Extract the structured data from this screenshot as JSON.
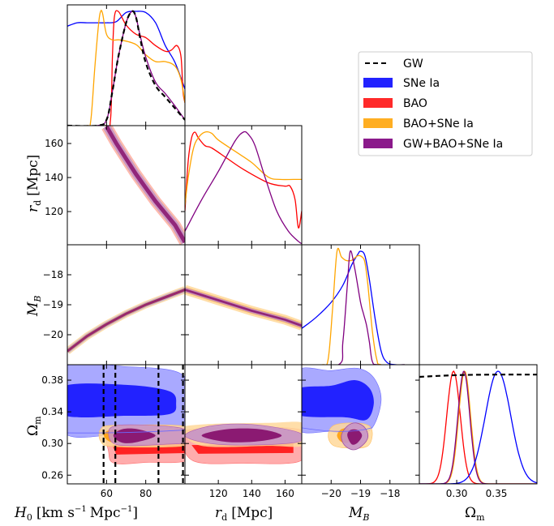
{
  "chart_data": {
    "type": "corner",
    "title": "",
    "parameters": [
      {
        "key": "H0",
        "label_tex": "H0 [km s^-1 Mpc^-1]",
        "label_main": "H",
        "label_sub": "0",
        "label_unit": "[km s",
        "label_unit2": "Mpc",
        "label_end": "]",
        "range": [
          40,
          100
        ],
        "ticks": [
          60,
          80
        ],
        "tick_labels": [
          "60",
          "80"
        ]
      },
      {
        "key": "rd",
        "label_tex": "r_d [Mpc]",
        "label_main": "r",
        "label_sub": "d",
        "label_unit": "[Mpc]",
        "range": [
          100,
          170
        ],
        "ticks": [
          120,
          140,
          160
        ],
        "tick_labels": [
          "120",
          "140",
          "160"
        ]
      },
      {
        "key": "MB",
        "label_tex": "M_B",
        "label_main": "M",
        "label_sub": "B",
        "range": [
          -21,
          -17
        ],
        "ticks": [
          -20,
          -19,
          -18
        ],
        "tick_labels": [
          "−20",
          "−19",
          "−18"
        ]
      },
      {
        "key": "Om",
        "label_tex": "Omega_m",
        "label_main": "Ω",
        "label_sub": "m",
        "range": [
          0.253,
          0.401
        ],
        "ticks": [
          0.3,
          0.35
        ],
        "tick_labels": [
          "0.30",
          "0.35"
        ]
      }
    ],
    "y_ranges": {
      "rd": {
        "range": [
          100.5,
          170.5
        ],
        "ticks": [
          120,
          140,
          160
        ],
        "tick_labels": [
          "120",
          "140",
          "160"
        ]
      },
      "MB": {
        "range": [
          -21,
          -17
        ],
        "ticks": [
          -20,
          -19,
          -18
        ],
        "tick_labels": [
          "−20",
          "−19",
          "−18"
        ]
      },
      "Om": {
        "range": [
          0.249,
          0.3995
        ],
        "ticks": [
          0.26,
          0.3,
          0.34,
          0.38
        ],
        "tick_labels": [
          "0.26",
          "0.30",
          "0.34",
          "0.38"
        ]
      }
    },
    "legend": {
      "placement": "upper-right",
      "entries": [
        {
          "label": "GW",
          "style": "dashed",
          "color": "#000000"
        },
        {
          "label": "SNe Ia",
          "style": "patch",
          "color": "#2222ff"
        },
        {
          "label": "BAO",
          "style": "patch",
          "color": "#ff2a2a"
        },
        {
          "label": "BAO+SNe Ia",
          "style": "patch",
          "color": "#ffae22"
        },
        {
          "label": "GW+BAO+SNe Ia",
          "style": "patch",
          "color": "#8b1a8b"
        }
      ]
    },
    "series_colors": {
      "GW": "#000000",
      "SNe": "#0000ff",
      "BAO": "#ff0000",
      "BAOSNe": "#ffa500",
      "All": "#800080"
    },
    "fill_colors": {
      "SNe": [
        "#9a9aff",
        "#2222ff"
      ],
      "BAO": [
        "#ffa3a3",
        "#ff2222"
      ],
      "BAOSNe": [
        "#ffd89a",
        "#ffa51a"
      ],
      "All": [
        "#c592c8",
        "#8b1a72"
      ]
    },
    "marginals": {
      "H0": {
        "SNe": {
          "x": [
            40,
            45,
            50,
            55,
            60,
            65,
            70,
            75,
            80,
            85,
            90,
            95,
            100
          ],
          "y": [
            0.87,
            0.9,
            0.9,
            0.9,
            0.9,
            0.91,
            0.99,
            1.0,
            0.99,
            0.9,
            0.7,
            0.55,
            0.32
          ]
        },
        "BAO": {
          "x": [
            40,
            59,
            62,
            63,
            64,
            66,
            70,
            75,
            80,
            85,
            90,
            93,
            96,
            98,
            99,
            100
          ],
          "y": [
            0,
            0,
            0.05,
            0.6,
            0.95,
            1.0,
            0.88,
            0.8,
            0.77,
            0.7,
            0.65,
            0.66,
            0.7,
            0.6,
            0.3,
            0.2
          ]
        },
        "BAOSNe": {
          "x": [
            40,
            50,
            52,
            54,
            56,
            57,
            58,
            60,
            63,
            67,
            75,
            80,
            85,
            90,
            95,
            98,
            100
          ],
          "y": [
            0,
            0,
            0.05,
            0.5,
            0.9,
            1.0,
            0.98,
            0.8,
            0.75,
            0.75,
            0.71,
            0.62,
            0.56,
            0.56,
            0.52,
            0.4,
            0.2
          ]
        },
        "All": {
          "x": [
            40,
            55,
            60,
            63,
            66,
            70,
            73,
            75,
            77,
            80,
            85,
            90,
            95,
            100
          ],
          "y": [
            0,
            0,
            0.05,
            0.3,
            0.6,
            0.9,
            1.0,
            0.95,
            0.8,
            0.6,
            0.38,
            0.28,
            0.17,
            0.05
          ]
        },
        "GW": {
          "x": [
            40,
            55,
            60,
            63,
            66,
            70,
            73,
            75,
            77,
            80,
            85,
            90,
            95,
            100
          ],
          "y": [
            0,
            0,
            0.05,
            0.3,
            0.6,
            0.9,
            1.0,
            0.95,
            0.78,
            0.55,
            0.35,
            0.25,
            0.15,
            0.05
          ]
        }
      },
      "rd": {
        "BAO": {
          "x": [
            100,
            102,
            104,
            106,
            108,
            112,
            116,
            125,
            135,
            150,
            160,
            163,
            166,
            168,
            170
          ],
          "y": [
            0.3,
            0.75,
            0.95,
            1.0,
            0.95,
            0.88,
            0.86,
            0.77,
            0.67,
            0.55,
            0.52,
            0.52,
            0.4,
            0.15,
            0.3
          ]
        },
        "BAOSNe": {
          "x": [
            100,
            102,
            105,
            108,
            112,
            116,
            120,
            130,
            140,
            150,
            157,
            165,
            170
          ],
          "y": [
            0.35,
            0.6,
            0.85,
            0.95,
            1.0,
            0.99,
            0.93,
            0.83,
            0.73,
            0.6,
            0.58,
            0.58,
            0.58
          ]
        },
        "All": {
          "x": [
            100,
            110,
            120,
            130,
            135,
            138,
            142,
            148,
            155,
            162,
            168,
            170
          ],
          "y": [
            0.12,
            0.4,
            0.65,
            0.92,
            1.0,
            0.98,
            0.88,
            0.6,
            0.3,
            0.12,
            0.03,
            0.01
          ]
        }
      },
      "MB": {
        "SNe": {
          "x": [
            -21,
            -20.5,
            -20,
            -19.6,
            -19.3,
            -19.1,
            -19.0,
            -18.85,
            -18.7,
            -18.5,
            -18.3,
            -18.1,
            -17.8,
            -17.5
          ],
          "y": [
            0.32,
            0.42,
            0.55,
            0.7,
            0.88,
            0.97,
            1.0,
            0.96,
            0.75,
            0.4,
            0.12,
            0.02,
            0,
            0
          ]
        },
        "BAOSNe": {
          "x": [
            -21,
            -20.3,
            -20.1,
            -19.95,
            -19.8,
            -19.65,
            -19.5,
            -19.3,
            -19.1,
            -18.95,
            -18.85,
            -18.75,
            -18.6,
            -18.45,
            -18.3,
            -17.5
          ],
          "y": [
            0,
            0,
            0.05,
            0.5,
            1.0,
            0.95,
            0.92,
            0.92,
            0.96,
            0.95,
            0.9,
            0.7,
            0.3,
            0.05,
            0,
            0
          ]
        },
        "All": {
          "x": [
            -21,
            -19.75,
            -19.6,
            -19.45,
            -19.35,
            -19.2,
            -19.0,
            -18.9,
            -18.8,
            -18.7,
            -18.6,
            -18.4,
            -17.5
          ],
          "y": [
            0,
            0,
            0.2,
            0.7,
            1.0,
            0.85,
            0.55,
            0.45,
            0.35,
            0.2,
            0.03,
            0,
            0
          ]
        }
      },
      "Om": {
        "GW": {
          "x": [
            0.253,
            0.3,
            0.35,
            0.401
          ],
          "y": [
            0.95,
            0.965,
            0.97,
            0.97
          ]
        },
        "BAO": {
          "mean": 0.296,
          "sigma": 0.0085
        },
        "BAOSNe": {
          "mean": 0.31,
          "sigma": 0.0075
        },
        "All": {
          "mean": 0.309,
          "sigma": 0.0075
        },
        "SNe": {
          "mean": 0.352,
          "sigma": 0.016
        }
      }
    },
    "gw_H0_bounds": [
      58.5,
      64.5,
      86.5,
      99
    ],
    "contours": {
      "rd_H0": {
        "description": "narrow degeneracy band from (H0 60, rd 170) to (H0 100, rd 100.5)",
        "curve_H0": [
          60,
          65,
          70,
          75,
          80,
          85,
          90,
          95,
          100
        ],
        "curve_rd": [
          170,
          160,
          151,
          142,
          134,
          126,
          119,
          112,
          102
        ]
      },
      "MB_H0": {
        "description": "narrow band from (H0 40, MB -20.5) to (H0 100, MB -18.5)",
        "curve_H0": [
          40,
          50,
          60,
          70,
          80,
          90,
          100
        ],
        "curve_MB": [
          -20.55,
          -20.05,
          -19.65,
          -19.3,
          -19.0,
          -18.75,
          -18.5
        ]
      },
      "MB_rd": {
        "description": "narrow band from (rd 100, MB -18.5) to (rd 170, MB -19.7)",
        "curve_rd": [
          100,
          120,
          140,
          160,
          170
        ],
        "curve_MB": [
          -18.5,
          -18.85,
          -19.2,
          -19.5,
          -19.7
        ]
      },
      "Om_H0": {
        "SNe": {
          "center": [
            70,
            0.355
          ],
          "outer": {
            "H0": [
              40,
              100
            ],
            "Om": [
              0.313,
              0.392
            ]
          },
          "inner": {
            "H0": [
              40,
              95
            ],
            "Om": [
              0.335,
              0.372
            ]
          }
        },
        "BAOSNe": {
          "center": [
            70,
            0.31
          ],
          "outer": {
            "H0": [
              57,
              100
            ],
            "Om": [
              0.295,
              0.322
            ]
          }
        },
        "BAO": {
          "center": [
            80,
            0.29
          ],
          "outer": {
            "H0": [
              61,
              100
            ],
            "Om": [
              0.275,
              0.318
            ]
          }
        },
        "All": {
          "center": [
            72,
            0.309
          ],
          "outer": {
            "H0": [
              61,
              100
            ],
            "Om": [
              0.298,
              0.323
            ]
          }
        }
      },
      "Om_rd": {
        "BAOSNe": {
          "center": [
            135,
            0.31
          ]
        },
        "BAO": {
          "center": [
            135,
            0.29
          ]
        },
        "All": {
          "center": [
            130,
            0.31
          ]
        }
      },
      "Om_MB": {
        "SNe": {
          "center": [
            -19.7,
            0.355
          ]
        },
        "BAOSNe": {
          "center": [
            -19.4,
            0.31
          ]
        },
        "All": {
          "center": [
            -19.2,
            0.31
          ]
        }
      }
    }
  }
}
